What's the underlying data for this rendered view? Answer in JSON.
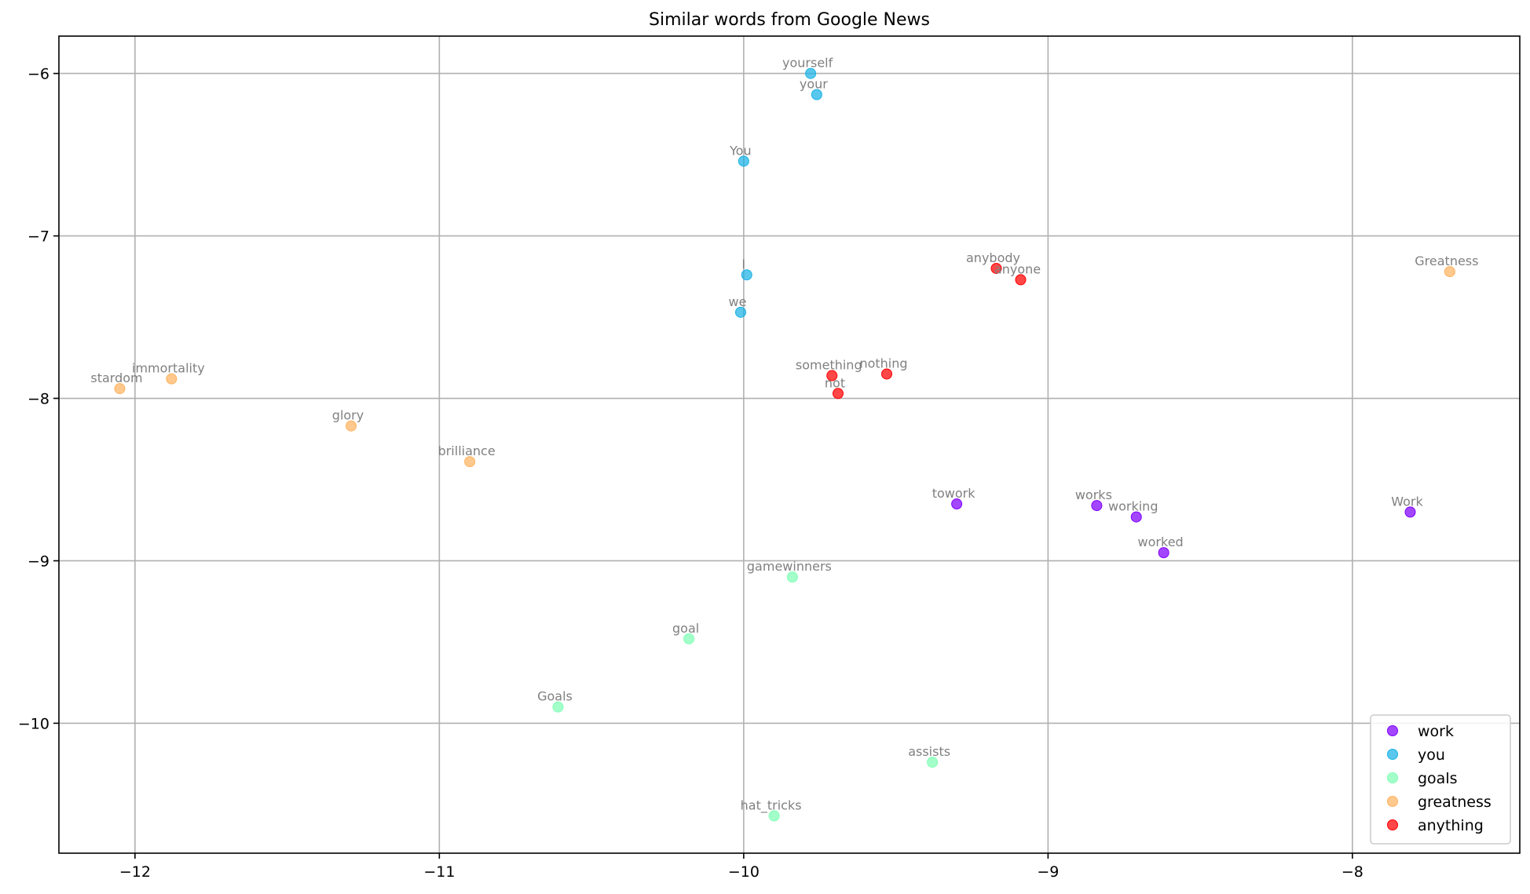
{
  "chart_data": {
    "type": "scatter",
    "title": "Similar words from Google News",
    "xlabel": "",
    "ylabel": "",
    "xlim": [
      -12.25,
      -7.45
    ],
    "ylim": [
      -10.8,
      -5.77
    ],
    "xticks": [
      -12,
      -11,
      -10,
      -9,
      -8
    ],
    "yticks": [
      -6,
      -7,
      -8,
      -9,
      -10
    ],
    "xtick_labels": [
      "−12",
      "−11",
      "−10",
      "−9",
      "−8"
    ],
    "ytick_labels": [
      "−6",
      "−7",
      "−8",
      "−9",
      "−10"
    ],
    "grid": true,
    "legend_position": "lower-right",
    "series": [
      {
        "name": "work",
        "color": "#8000ff",
        "points": [
          {
            "word": "towork",
            "x": -9.3,
            "y": -8.65
          },
          {
            "word": "works",
            "x": -8.84,
            "y": -8.66
          },
          {
            "word": "working",
            "x": -8.71,
            "y": -8.73
          },
          {
            "word": "worked",
            "x": -8.62,
            "y": -8.95
          },
          {
            "word": "Work",
            "x": -7.81,
            "y": -8.7
          }
        ]
      },
      {
        "name": "you",
        "color": "#1ab2e6",
        "points": [
          {
            "word": "yourself",
            "x": -9.78,
            "y": -6.0
          },
          {
            "word": "your",
            "x": -9.76,
            "y": -6.13
          },
          {
            "word": "You",
            "x": -10.0,
            "y": -6.54
          },
          {
            "word": "I",
            "x": -9.99,
            "y": -7.24
          },
          {
            "word": "we",
            "x": -10.01,
            "y": -7.47
          }
        ]
      },
      {
        "name": "goals",
        "color": "#80ffb4",
        "points": [
          {
            "word": "gamewinners",
            "x": -9.84,
            "y": -9.1
          },
          {
            "word": "goal",
            "x": -10.18,
            "y": -9.48
          },
          {
            "word": "Goals",
            "x": -10.61,
            "y": -9.9
          },
          {
            "word": "assists",
            "x": -9.38,
            "y": -10.24
          },
          {
            "word": "hat_tricks",
            "x": -9.9,
            "y": -10.57
          }
        ]
      },
      {
        "name": "greatness",
        "color": "#ffb360",
        "points": [
          {
            "word": "stardom",
            "x": -12.05,
            "y": -7.94
          },
          {
            "word": "immortality",
            "x": -11.88,
            "y": -7.88
          },
          {
            "word": "glory",
            "x": -11.29,
            "y": -8.17
          },
          {
            "word": "brilliance",
            "x": -10.9,
            "y": -8.39
          },
          {
            "word": "Greatness",
            "x": -7.68,
            "y": -7.22
          }
        ]
      },
      {
        "name": "anything",
        "color": "#ff0000",
        "points": [
          {
            "word": "anybody",
            "x": -9.17,
            "y": -7.2
          },
          {
            "word": "anyone",
            "x": -9.09,
            "y": -7.27
          },
          {
            "word": "something",
            "x": -9.71,
            "y": -7.86
          },
          {
            "word": "nothing",
            "x": -9.53,
            "y": -7.85
          },
          {
            "word": "not",
            "x": -9.69,
            "y": -7.97
          }
        ]
      }
    ]
  }
}
